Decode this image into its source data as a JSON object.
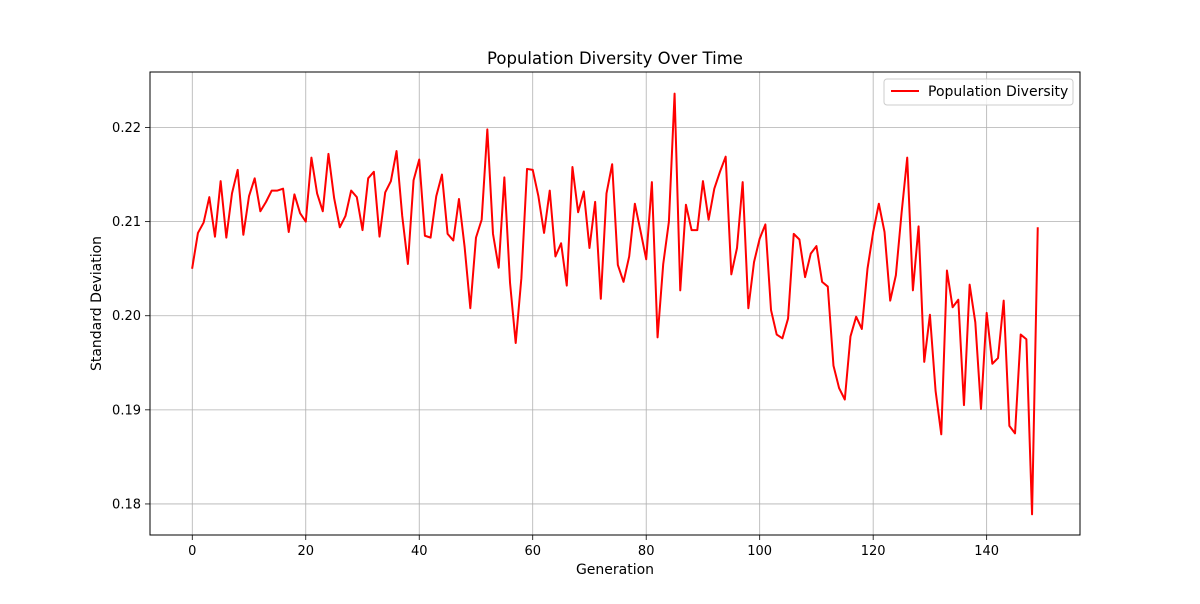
{
  "chart_data": {
    "type": "line",
    "title": "Population Diversity Over Time",
    "xlabel": "Generation",
    "ylabel": "Standard Deviation",
    "xlim": [
      -7.45,
      156.45
    ],
    "ylim": [
      0.1767,
      0.2259
    ],
    "x_ticks": [
      0,
      20,
      40,
      60,
      80,
      100,
      120,
      140
    ],
    "x_tick_labels": [
      "0",
      "20",
      "40",
      "60",
      "80",
      "100",
      "120",
      "140"
    ],
    "y_ticks": [
      0.18,
      0.19,
      0.2,
      0.21,
      0.22
    ],
    "y_tick_labels": [
      "0.18",
      "0.19",
      "0.20",
      "0.21",
      "0.22"
    ],
    "grid": true,
    "legend_position": "top-right",
    "series": [
      {
        "name": "Population Diversity",
        "color": "#ff0000",
        "x_start": 0,
        "x_step": 1,
        "values": [
          0.2051,
          0.2088,
          0.2099,
          0.2126,
          0.2084,
          0.2143,
          0.2083,
          0.213,
          0.2155,
          0.2086,
          0.2127,
          0.2146,
          0.2111,
          0.2121,
          0.2133,
          0.2133,
          0.2135,
          0.2089,
          0.2129,
          0.2109,
          0.21,
          0.2168,
          0.213,
          0.2111,
          0.2172,
          0.2125,
          0.2094,
          0.2106,
          0.2133,
          0.2126,
          0.2091,
          0.2146,
          0.2153,
          0.2084,
          0.2131,
          0.2143,
          0.2175,
          0.2106,
          0.2055,
          0.2144,
          0.2166,
          0.2085,
          0.2083,
          0.2127,
          0.215,
          0.2087,
          0.208,
          0.2124,
          0.2073,
          0.2008,
          0.2083,
          0.2102,
          0.2198,
          0.2087,
          0.2051,
          0.2147,
          0.2035,
          0.1971,
          0.204,
          0.2156,
          0.2155,
          0.2127,
          0.2088,
          0.2133,
          0.2063,
          0.2077,
          0.2032,
          0.2158,
          0.211,
          0.2132,
          0.2072,
          0.2121,
          0.2018,
          0.213,
          0.2161,
          0.2054,
          0.2036,
          0.2063,
          0.2119,
          0.209,
          0.206,
          0.2142,
          0.1977,
          0.2055,
          0.21,
          0.2236,
          0.2027,
          0.2118,
          0.2091,
          0.2091,
          0.2143,
          0.2102,
          0.2135,
          0.2153,
          0.2169,
          0.2044,
          0.2072,
          0.2142,
          0.2008,
          0.2057,
          0.2082,
          0.2097,
          0.2006,
          0.198,
          0.1976,
          0.1997,
          0.2087,
          0.2081,
          0.2041,
          0.2066,
          0.2074,
          0.2036,
          0.2031,
          0.1947,
          0.1923,
          0.1911,
          0.1978,
          0.1999,
          0.1986,
          0.205,
          0.2089,
          0.2119,
          0.2089,
          0.2016,
          0.2043,
          0.2109,
          0.2168,
          0.2027,
          0.2095,
          0.1951,
          0.2001,
          0.192,
          0.1874,
          0.2048,
          0.2009,
          0.2017,
          0.1905,
          0.2033,
          0.1993,
          0.1901,
          0.2003,
          0.1949,
          0.1955,
          0.2016,
          0.1883,
          0.1875,
          0.198,
          0.1975,
          0.1789,
          0.2093
        ]
      }
    ]
  }
}
